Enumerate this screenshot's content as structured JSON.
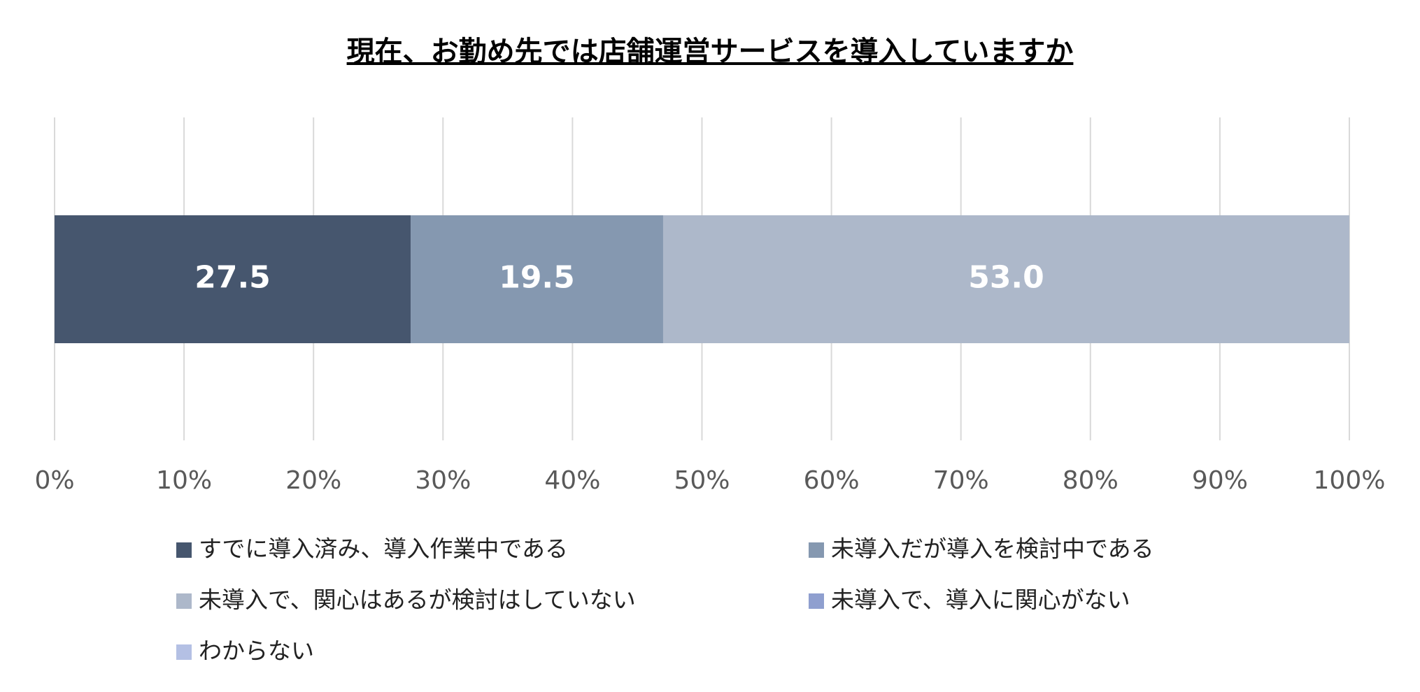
{
  "chart_data": {
    "type": "stacked-bar-horizontal",
    "title": "現在、お勤め先では店舗運営サービスを導入していますか",
    "categories": [
      null
    ],
    "series": [
      {
        "name": "すでに導入済み、導入作業中である",
        "color": "#46566e",
        "values": [
          27.5
        ],
        "value_labels": [
          "27.5"
        ]
      },
      {
        "name": "未導入だが導入を検討中である",
        "color": "#8598b0",
        "values": [
          19.5
        ],
        "value_labels": [
          "19.5"
        ]
      },
      {
        "name": "未導入で、関心はあるが検討はしていない",
        "color": "#adb8ca",
        "values": [
          53
        ],
        "value_labels": [
          "53.0"
        ]
      },
      {
        "name": "未導入で、導入に関心がない",
        "color": "#8f9fcf",
        "values": [
          0
        ]
      },
      {
        "name": "わからない",
        "color": "#b4c0e4",
        "values": [
          0
        ]
      }
    ],
    "xlim": [
      0,
      100
    ],
    "xticks": [
      {
        "value": 0,
        "label": "0%"
      },
      {
        "value": 10,
        "label": "10%"
      },
      {
        "value": 20,
        "label": "20%"
      },
      {
        "value": 30,
        "label": "30%"
      },
      {
        "value": 40,
        "label": "40%"
      },
      {
        "value": 50,
        "label": "50%"
      },
      {
        "value": 60,
        "label": "60%"
      },
      {
        "value": 70,
        "label": "70%"
      },
      {
        "value": 80,
        "label": "80%"
      },
      {
        "value": 90,
        "label": "90%"
      },
      {
        "value": 100,
        "label": "100%"
      }
    ],
    "grid": true
  }
}
